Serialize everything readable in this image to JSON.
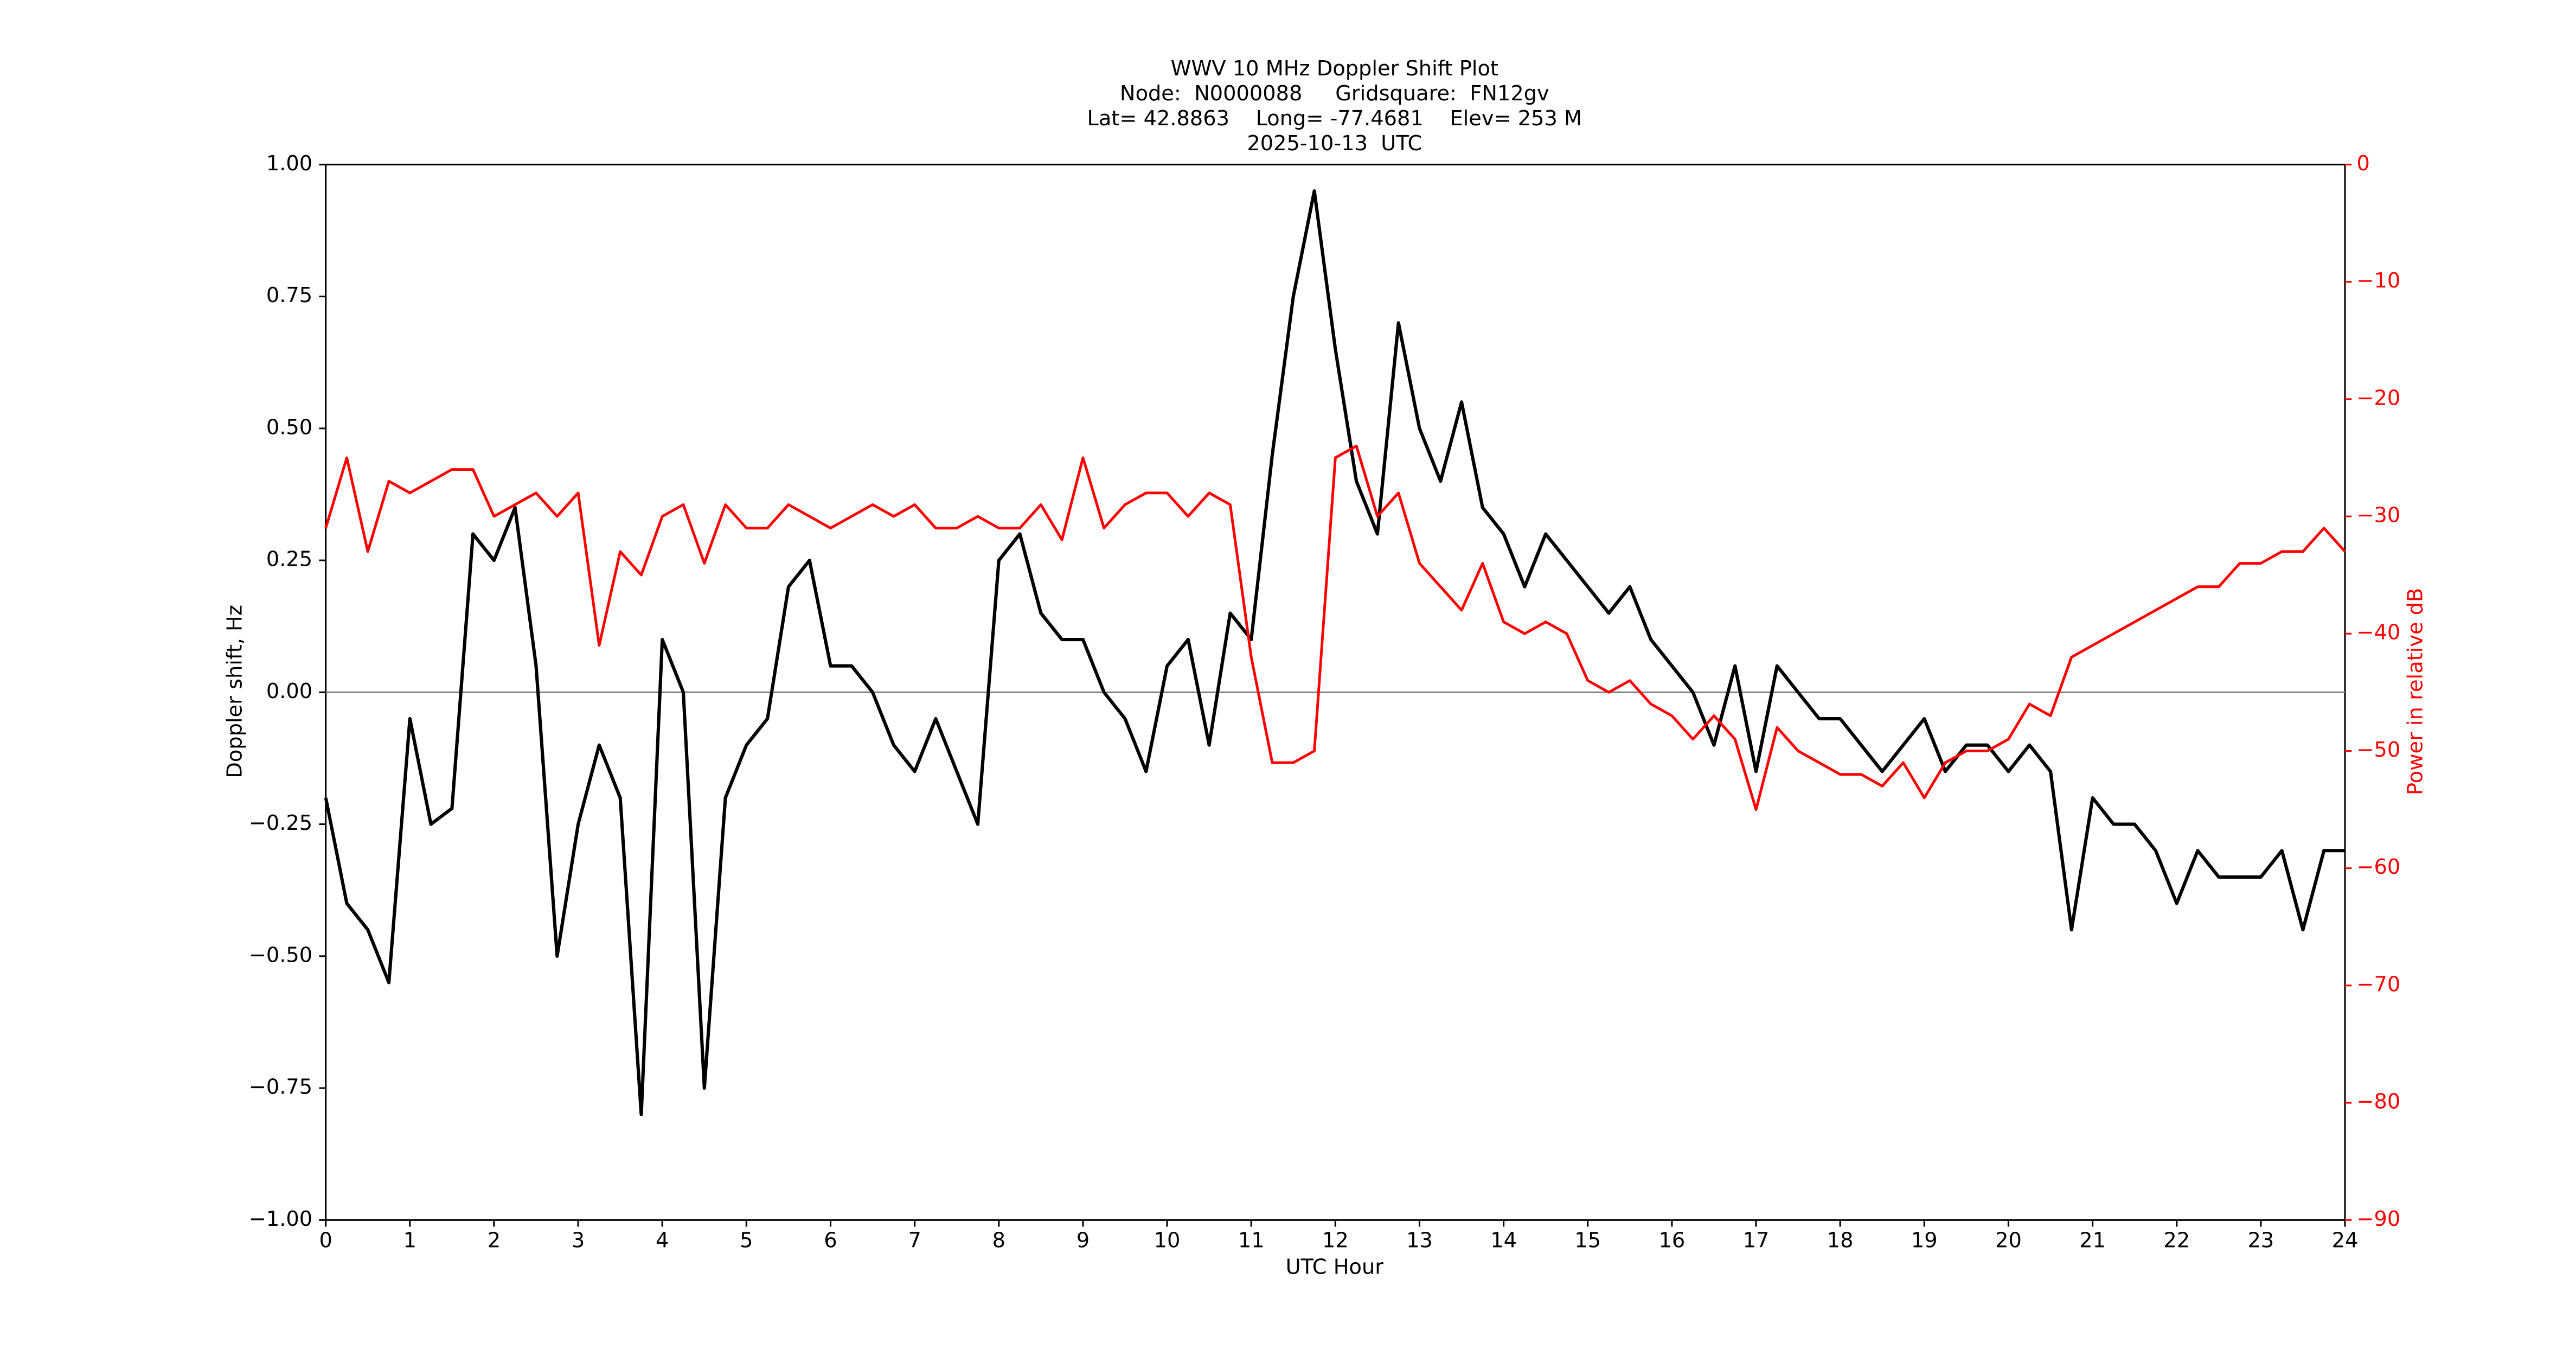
{
  "chart_data": {
    "type": "line",
    "title_lines": [
      "WWV 10 MHz Doppler Shift Plot",
      "Node:  N0000088     Gridsquare:  FN12gv",
      "Lat= 42.8863    Long= -77.4681    Elev= 253 M",
      "2025-10-13  UTC"
    ],
    "xlabel": "UTC Hour",
    "ylabel": "Doppler shift, Hz",
    "y2label": "Power in relative dB",
    "x": [
      0,
      0.25,
      0.5,
      0.75,
      1,
      1.25,
      1.5,
      1.75,
      2,
      2.25,
      2.5,
      2.75,
      3,
      3.25,
      3.5,
      3.75,
      4,
      4.25,
      4.5,
      4.75,
      5,
      5.25,
      5.5,
      5.75,
      6,
      6.25,
      6.5,
      6.75,
      7,
      7.25,
      7.5,
      7.75,
      8,
      8.25,
      8.5,
      8.75,
      9,
      9.25,
      9.5,
      9.75,
      10,
      10.25,
      10.5,
      10.75,
      11,
      11.25,
      11.5,
      11.75,
      12,
      12.25,
      12.5,
      12.75,
      13,
      13.25,
      13.5,
      13.75,
      14,
      14.25,
      14.5,
      14.75,
      15,
      15.25,
      15.5,
      15.75,
      16,
      16.25,
      16.5,
      16.75,
      17,
      17.25,
      17.5,
      17.75,
      18,
      18.25,
      18.5,
      18.75,
      19,
      19.25,
      19.5,
      19.75,
      20,
      20.25,
      20.5,
      20.75,
      21,
      21.25,
      21.5,
      21.75,
      22,
      22.25,
      22.5,
      22.75,
      23,
      23.25,
      23.5,
      23.75,
      24
    ],
    "series": [
      {
        "name": "Doppler shift",
        "color": "#000000",
        "axis": "y",
        "values": [
          -0.2,
          -0.4,
          -0.45,
          -0.55,
          -0.05,
          -0.25,
          -0.22,
          0.3,
          0.25,
          0.35,
          0.05,
          -0.5,
          -0.25,
          -0.1,
          -0.2,
          -0.8,
          0.1,
          0.0,
          -0.75,
          -0.2,
          -0.1,
          -0.05,
          0.2,
          0.25,
          0.05,
          0.05,
          0.0,
          -0.1,
          -0.15,
          -0.05,
          -0.15,
          -0.25,
          0.25,
          0.3,
          0.15,
          0.1,
          0.1,
          0.0,
          -0.05,
          -0.15,
          0.05,
          0.1,
          -0.1,
          0.15,
          0.1,
          0.45,
          0.75,
          0.95,
          0.65,
          0.4,
          0.3,
          0.7,
          0.5,
          0.4,
          0.55,
          0.35,
          0.3,
          0.2,
          0.3,
          0.25,
          0.2,
          0.15,
          0.2,
          0.1,
          0.05,
          0.0,
          -0.1,
          0.05,
          -0.15,
          0.05,
          0.0,
          -0.05,
          -0.05,
          -0.1,
          -0.15,
          -0.1,
          -0.05,
          -0.15,
          -0.1,
          -0.1,
          -0.15,
          -0.1,
          -0.15,
          -0.45,
          -0.2,
          -0.25,
          -0.25,
          -0.3,
          -0.4,
          -0.3,
          -0.35,
          -0.35,
          -0.35,
          -0.3,
          -0.45,
          -0.3,
          -0.3
        ]
      },
      {
        "name": "Power",
        "color": "#ff0000",
        "axis": "y2",
        "values": [
          -31,
          -25,
          -33,
          -27,
          -28,
          -27,
          -26,
          -26,
          -30,
          -29,
          -28,
          -30,
          -28,
          -41,
          -33,
          -35,
          -30,
          -29,
          -34,
          -29,
          -31,
          -31,
          -29,
          -30,
          -31,
          -30,
          -29,
          -30,
          -29,
          -31,
          -31,
          -30,
          -31,
          -31,
          -29,
          -32,
          -25,
          -31,
          -29,
          -28,
          -28,
          -30,
          -28,
          -29,
          -42,
          -51,
          -51,
          -50,
          -25,
          -24,
          -30,
          -28,
          -34,
          -36,
          -38,
          -34,
          -39,
          -40,
          -39,
          -40,
          -44,
          -45,
          -44,
          -46,
          -47,
          -49,
          -47,
          -49,
          -55,
          -48,
          -50,
          -51,
          -52,
          -52,
          -53,
          -51,
          -54,
          -51,
          -50,
          -50,
          -49,
          -46,
          -47,
          -42,
          -41,
          -40,
          -39,
          -38,
          -37,
          -36,
          -36,
          -34,
          -34,
          -33,
          -33,
          -31,
          -33
        ]
      }
    ],
    "zero_line": 0,
    "zero_line_color": "#808080",
    "xlim": [
      0,
      24
    ],
    "xticks": [
      0,
      1,
      2,
      3,
      4,
      5,
      6,
      7,
      8,
      9,
      10,
      11,
      12,
      13,
      14,
      15,
      16,
      17,
      18,
      19,
      20,
      21,
      22,
      23,
      24
    ],
    "ylim": [
      -1,
      1
    ],
    "yticks": [
      {
        "value": -1,
        "label": "−1.00"
      },
      {
        "value": -0.75,
        "label": "−0.75"
      },
      {
        "value": -0.5,
        "label": "−0.50"
      },
      {
        "value": -0.25,
        "label": "−0.25"
      },
      {
        "value": 0,
        "label": "0.00"
      },
      {
        "value": 0.25,
        "label": "0.25"
      },
      {
        "value": 0.5,
        "label": "0.50"
      },
      {
        "value": 0.75,
        "label": "0.75"
      },
      {
        "value": 1,
        "label": "1.00"
      }
    ],
    "y2lim": [
      -90,
      0
    ],
    "y2ticks": [
      {
        "value": -90,
        "label": "−90"
      },
      {
        "value": -80,
        "label": "−80"
      },
      {
        "value": -70,
        "label": "−70"
      },
      {
        "value": -60,
        "label": "−60"
      },
      {
        "value": -50,
        "label": "−50"
      },
      {
        "value": -40,
        "label": "−40"
      },
      {
        "value": -30,
        "label": "−30"
      },
      {
        "value": -20,
        "label": "−20"
      },
      {
        "value": -10,
        "label": "−10"
      },
      0
    ],
    "y2_color": "#ff0000"
  }
}
